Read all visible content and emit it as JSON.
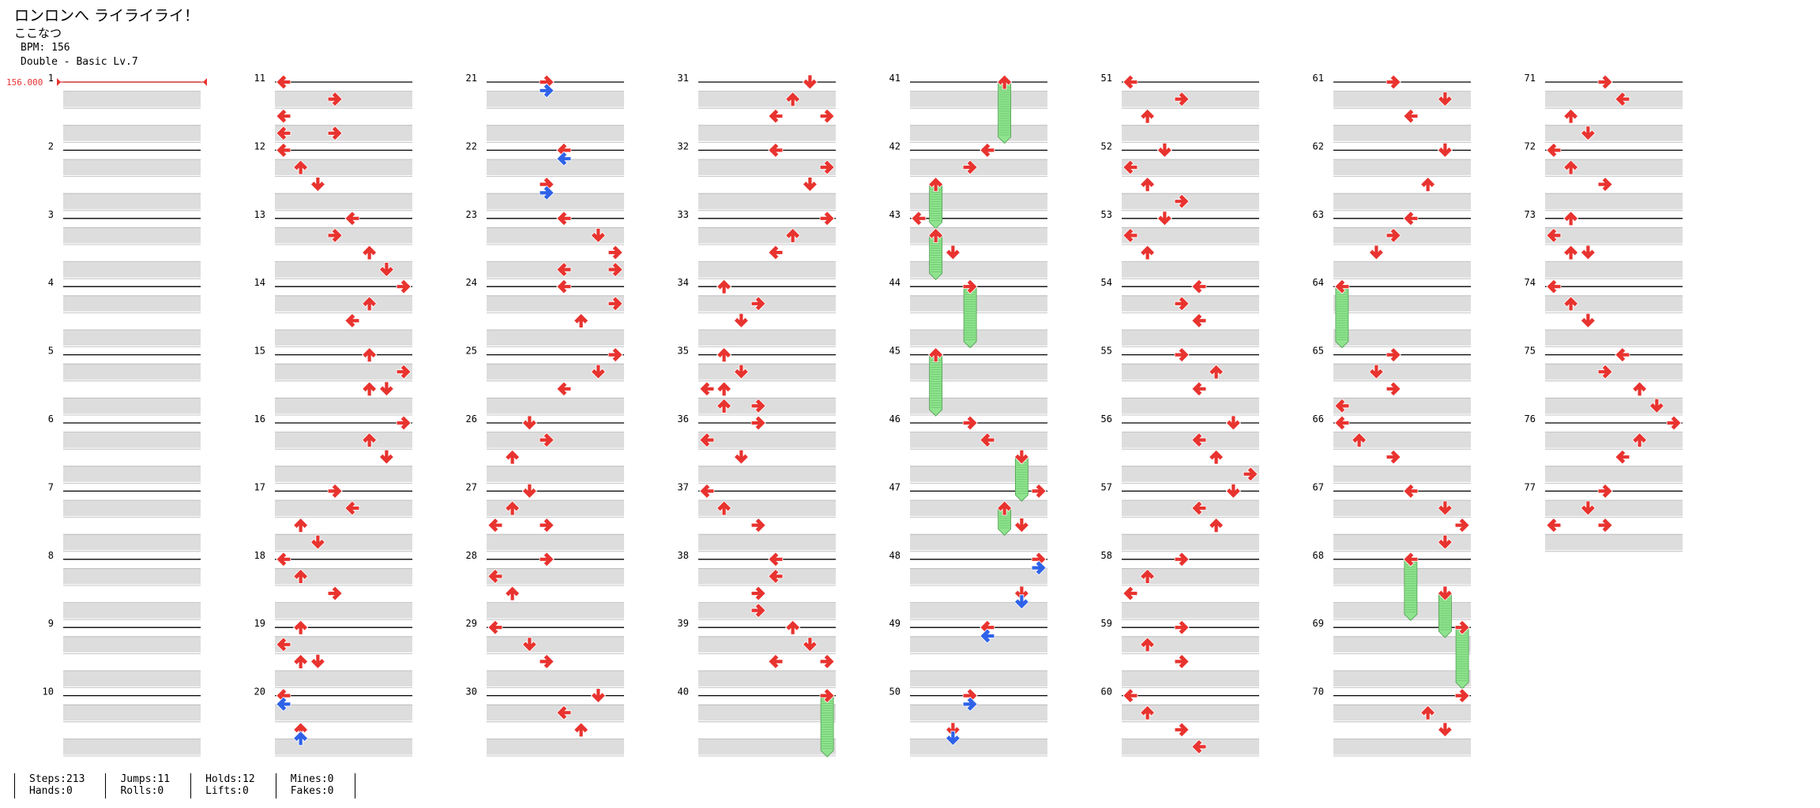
{
  "song": {
    "title": "ロンロンへ ライライライ！",
    "artist": "ここなつ"
  },
  "bpm_line": "BPM: 156",
  "chart_line": "Double - Basic Lv.7",
  "bpm_marker": "156.000",
  "stats": {
    "steps": "Steps:213",
    "jumps": "Jumps:11",
    "holds": "Holds:12",
    "mines": "Mines:0",
    "hands": "Hands:0",
    "rolls": "Rolls:0",
    "lifts": "Lifts:0",
    "fakes": "Fakes:0"
  },
  "colors": {
    "arrow": "#e8332f",
    "arrow_alt": "#2f62e8",
    "hold": "#8fe38f",
    "stripe": "#dddddd",
    "bpm": "#e8332f"
  },
  "chart_data": {
    "type": "stepchart",
    "mode": "Double",
    "lanes": [
      "P1-Left",
      "P1-Down",
      "P1-Up",
      "P1-Right",
      "P2-Left",
      "P2-Down",
      "P2-Up",
      "P2-Right"
    ],
    "measure_count": 77,
    "measure_numbers": [
      1,
      2,
      3,
      4,
      5,
      6,
      7,
      8,
      9,
      10,
      11,
      12,
      13,
      14,
      15,
      16,
      17,
      18,
      19,
      20,
      21,
      22,
      23,
      24,
      25,
      26,
      27,
      28,
      29,
      30,
      31,
      32,
      33,
      34,
      35,
      36,
      37,
      38,
      39,
      40,
      41,
      42,
      43,
      44,
      45,
      46,
      47,
      48,
      49,
      50,
      51,
      52,
      53,
      54,
      55,
      56,
      57,
      58,
      59,
      60,
      61,
      62,
      63,
      64,
      65,
      66,
      67,
      68,
      69,
      70,
      71,
      72,
      73,
      74,
      75,
      76,
      77
    ],
    "notes": [
      {
        "m": 11,
        "b": 0,
        "l": 0,
        "c": "r"
      },
      {
        "m": 11,
        "b": 1,
        "l": 3,
        "c": "r"
      },
      {
        "m": 11,
        "b": 2,
        "l": 0,
        "c": "r"
      },
      {
        "m": 11,
        "b": 3,
        "l": 3,
        "c": "r"
      },
      {
        "m": 11,
        "b": 3,
        "l": 0,
        "c": "r"
      },
      {
        "m": 12,
        "b": 0,
        "l": 0,
        "c": "r"
      },
      {
        "m": 12,
        "b": 1,
        "l": 1,
        "c": "r"
      },
      {
        "m": 12,
        "b": 2,
        "l": 2,
        "c": "r"
      },
      {
        "m": 13,
        "b": 0,
        "l": 4,
        "c": "r"
      },
      {
        "m": 13,
        "b": 1,
        "l": 3,
        "c": "r"
      },
      {
        "m": 13,
        "b": 2,
        "l": 5,
        "c": "r"
      },
      {
        "m": 13,
        "b": 3,
        "l": 6,
        "c": "r"
      },
      {
        "m": 14,
        "b": 0,
        "l": 7,
        "c": "r"
      },
      {
        "m": 14,
        "b": 1,
        "l": 5,
        "c": "r"
      },
      {
        "m": 14,
        "b": 2,
        "l": 4,
        "c": "r"
      },
      {
        "m": 15,
        "b": 0,
        "l": 5,
        "c": "r"
      },
      {
        "m": 15,
        "b": 1,
        "l": 7,
        "c": "r"
      },
      {
        "m": 15,
        "b": 2,
        "l": 5,
        "c": "r"
      },
      {
        "m": 15,
        "b": 2,
        "l": 6,
        "c": "r"
      },
      {
        "m": 16,
        "b": 0,
        "l": 7,
        "c": "r"
      },
      {
        "m": 16,
        "b": 1,
        "l": 5,
        "c": "r"
      },
      {
        "m": 16,
        "b": 2,
        "l": 6,
        "c": "r"
      },
      {
        "m": 17,
        "b": 0,
        "l": 3,
        "c": "r"
      },
      {
        "m": 17,
        "b": 1,
        "l": 4,
        "c": "r"
      },
      {
        "m": 17,
        "b": 2,
        "l": 1,
        "c": "r"
      },
      {
        "m": 17,
        "b": 3,
        "l": 2,
        "c": "r"
      },
      {
        "m": 18,
        "b": 0,
        "l": 0,
        "c": "r"
      },
      {
        "m": 18,
        "b": 1,
        "l": 1,
        "c": "r"
      },
      {
        "m": 18,
        "b": 2,
        "l": 3,
        "c": "r"
      },
      {
        "m": 19,
        "b": 0,
        "l": 1,
        "c": "r"
      },
      {
        "m": 19,
        "b": 1,
        "l": 0,
        "c": "r"
      },
      {
        "m": 19,
        "b": 2,
        "l": 1,
        "c": "r"
      },
      {
        "m": 19,
        "b": 2,
        "l": 2,
        "c": "r"
      },
      {
        "m": 20,
        "b": 0,
        "l": 0,
        "c": "r"
      },
      {
        "m": 20,
        "b": 0.5,
        "l": 0,
        "c": "b"
      },
      {
        "m": 20,
        "b": 2,
        "l": 1,
        "c": "r"
      },
      {
        "m": 20,
        "b": 2.5,
        "l": 1,
        "c": "b"
      },
      {
        "m": 21,
        "b": 0,
        "l": 3,
        "c": "r"
      },
      {
        "m": 21,
        "b": 0.5,
        "l": 3,
        "c": "b"
      },
      {
        "m": 22,
        "b": 0,
        "l": 4,
        "c": "r"
      },
      {
        "m": 22,
        "b": 0.5,
        "l": 4,
        "c": "b"
      },
      {
        "m": 22,
        "b": 2,
        "l": 3,
        "c": "r"
      },
      {
        "m": 22,
        "b": 2.5,
        "l": 3,
        "c": "b"
      },
      {
        "m": 23,
        "b": 0,
        "l": 4,
        "c": "r"
      },
      {
        "m": 23,
        "b": 1,
        "l": 6,
        "c": "r"
      },
      {
        "m": 23,
        "b": 2,
        "l": 7,
        "c": "r"
      },
      {
        "m": 23,
        "b": 3,
        "l": 4,
        "c": "r"
      },
      {
        "m": 23,
        "b": 3,
        "l": 7,
        "c": "r"
      },
      {
        "m": 24,
        "b": 0,
        "l": 4,
        "c": "r"
      },
      {
        "m": 24,
        "b": 1,
        "l": 7,
        "c": "r"
      },
      {
        "m": 24,
        "b": 2,
        "l": 5,
        "c": "r"
      },
      {
        "m": 25,
        "b": 0,
        "l": 7,
        "c": "r"
      },
      {
        "m": 25,
        "b": 1,
        "l": 6,
        "c": "r"
      },
      {
        "m": 25,
        "b": 2,
        "l": 4,
        "c": "r"
      },
      {
        "m": 26,
        "b": 0,
        "l": 2,
        "c": "r"
      },
      {
        "m": 26,
        "b": 1,
        "l": 3,
        "c": "r"
      },
      {
        "m": 26,
        "b": 2,
        "l": 1,
        "c": "r"
      },
      {
        "m": 27,
        "b": 0,
        "l": 2,
        "c": "r"
      },
      {
        "m": 27,
        "b": 1,
        "l": 1,
        "c": "r"
      },
      {
        "m": 27,
        "b": 2,
        "l": 0,
        "c": "r"
      },
      {
        "m": 27,
        "b": 2,
        "l": 3,
        "c": "r"
      },
      {
        "m": 28,
        "b": 0,
        "l": 3,
        "c": "r"
      },
      {
        "m": 28,
        "b": 1,
        "l": 0,
        "c": "r"
      },
      {
        "m": 28,
        "b": 2,
        "l": 1,
        "c": "r"
      },
      {
        "m": 29,
        "b": 0,
        "l": 0,
        "c": "r"
      },
      {
        "m": 29,
        "b": 1,
        "l": 2,
        "c": "r"
      },
      {
        "m": 29,
        "b": 2,
        "l": 3,
        "c": "r"
      },
      {
        "m": 30,
        "b": 0,
        "l": 6,
        "c": "r"
      },
      {
        "m": 30,
        "b": 1,
        "l": 4,
        "c": "r"
      },
      {
        "m": 30,
        "b": 2,
        "l": 5,
        "c": "r"
      },
      {
        "m": 31,
        "b": 0,
        "l": 6,
        "c": "r"
      },
      {
        "m": 31,
        "b": 1,
        "l": 5,
        "c": "r"
      },
      {
        "m": 31,
        "b": 2,
        "l": 4,
        "c": "r"
      },
      {
        "m": 31,
        "b": 2,
        "l": 7,
        "c": "r"
      },
      {
        "m": 32,
        "b": 0,
        "l": 4,
        "c": "r"
      },
      {
        "m": 32,
        "b": 1,
        "l": 7,
        "c": "r"
      },
      {
        "m": 32,
        "b": 2,
        "l": 6,
        "c": "r"
      },
      {
        "m": 33,
        "b": 0,
        "l": 7,
        "c": "r"
      },
      {
        "m": 33,
        "b": 1,
        "l": 5,
        "c": "r"
      },
      {
        "m": 33,
        "b": 2,
        "l": 4,
        "c": "r"
      },
      {
        "m": 34,
        "b": 0,
        "l": 1,
        "c": "r"
      },
      {
        "m": 34,
        "b": 1,
        "l": 3,
        "c": "r"
      },
      {
        "m": 34,
        "b": 2,
        "l": 2,
        "c": "r"
      },
      {
        "m": 35,
        "b": 0,
        "l": 1,
        "c": "r"
      },
      {
        "m": 35,
        "b": 1,
        "l": 2,
        "c": "r"
      },
      {
        "m": 35,
        "b": 2,
        "l": 0,
        "c": "r"
      },
      {
        "m": 35,
        "b": 2,
        "l": 1,
        "c": "r"
      },
      {
        "m": 35,
        "b": 3,
        "l": 1,
        "c": "r"
      },
      {
        "m": 35,
        "b": 3,
        "l": 3,
        "c": "r"
      },
      {
        "m": 36,
        "b": 0,
        "l": 3,
        "c": "r"
      },
      {
        "m": 36,
        "b": 1,
        "l": 0,
        "c": "r"
      },
      {
        "m": 36,
        "b": 2,
        "l": 2,
        "c": "r"
      },
      {
        "m": 37,
        "b": 0,
        "l": 0,
        "c": "r"
      },
      {
        "m": 37,
        "b": 1,
        "l": 1,
        "c": "r"
      },
      {
        "m": 37,
        "b": 2,
        "l": 3,
        "c": "r"
      },
      {
        "m": 38,
        "b": 0,
        "l": 4,
        "c": "r"
      },
      {
        "m": 38,
        "b": 1,
        "l": 4,
        "c": "r"
      },
      {
        "m": 38,
        "b": 2,
        "l": 3,
        "c": "r"
      },
      {
        "m": 38,
        "b": 3,
        "l": 3,
        "c": "r"
      },
      {
        "m": 39,
        "b": 0,
        "l": 5,
        "c": "r"
      },
      {
        "m": 39,
        "b": 1,
        "l": 6,
        "c": "r"
      },
      {
        "m": 39,
        "b": 2,
        "l": 4,
        "c": "r"
      },
      {
        "m": 39,
        "b": 2,
        "l": 7,
        "c": "r"
      },
      {
        "m": 40,
        "b": 0,
        "l": 7,
        "c": "r",
        "hold": 3.5
      },
      {
        "m": 41,
        "b": 0,
        "l": 5,
        "c": "r",
        "hold": 3.5
      },
      {
        "m": 42,
        "b": 0,
        "l": 4,
        "c": "r"
      },
      {
        "m": 42,
        "b": 1,
        "l": 3,
        "c": "r"
      },
      {
        "m": 42,
        "b": 2,
        "l": 1,
        "c": "r",
        "hold": 2.5
      },
      {
        "m": 43,
        "b": 0,
        "l": 0,
        "c": "r"
      },
      {
        "m": 43,
        "b": 1,
        "l": 1,
        "c": "r",
        "hold": 2.5
      },
      {
        "m": 43,
        "b": 2,
        "l": 2,
        "c": "r"
      },
      {
        "m": 44,
        "b": 0,
        "l": 3,
        "c": "r",
        "hold": 3.5
      },
      {
        "m": 45,
        "b": 0,
        "l": 1,
        "c": "r",
        "hold": 3.5
      },
      {
        "m": 46,
        "b": 0,
        "l": 3,
        "c": "r"
      },
      {
        "m": 46,
        "b": 1,
        "l": 4,
        "c": "r"
      },
      {
        "m": 46,
        "b": 2,
        "l": 6,
        "c": "r",
        "hold": 2.5
      },
      {
        "m": 47,
        "b": 0,
        "l": 7,
        "c": "r"
      },
      {
        "m": 47,
        "b": 1,
        "l": 5,
        "c": "r",
        "hold": 1.5
      },
      {
        "m": 47,
        "b": 2,
        "l": 6,
        "c": "r"
      },
      {
        "m": 48,
        "b": 0,
        "l": 7,
        "c": "r"
      },
      {
        "m": 48,
        "b": 0.5,
        "l": 7,
        "c": "b"
      },
      {
        "m": 48,
        "b": 2,
        "l": 6,
        "c": "r"
      },
      {
        "m": 48,
        "b": 2.5,
        "l": 6,
        "c": "b"
      },
      {
        "m": 49,
        "b": 0,
        "l": 4,
        "c": "r"
      },
      {
        "m": 49,
        "b": 0.5,
        "l": 4,
        "c": "b"
      },
      {
        "m": 50,
        "b": 0,
        "l": 3,
        "c": "r"
      },
      {
        "m": 50,
        "b": 0.5,
        "l": 3,
        "c": "b"
      },
      {
        "m": 50,
        "b": 2,
        "l": 2,
        "c": "r"
      },
      {
        "m": 50,
        "b": 2.5,
        "l": 2,
        "c": "b"
      },
      {
        "m": 51,
        "b": 0,
        "l": 0,
        "c": "r"
      },
      {
        "m": 51,
        "b": 1,
        "l": 3,
        "c": "r"
      },
      {
        "m": 51,
        "b": 2,
        "l": 1,
        "c": "r"
      },
      {
        "m": 52,
        "b": 0,
        "l": 2,
        "c": "r"
      },
      {
        "m": 52,
        "b": 1,
        "l": 0,
        "c": "r"
      },
      {
        "m": 52,
        "b": 2,
        "l": 1,
        "c": "r"
      },
      {
        "m": 52,
        "b": 3,
        "l": 3,
        "c": "r"
      },
      {
        "m": 53,
        "b": 0,
        "l": 2,
        "c": "r"
      },
      {
        "m": 53,
        "b": 1,
        "l": 0,
        "c": "r"
      },
      {
        "m": 53,
        "b": 2,
        "l": 1,
        "c": "r"
      },
      {
        "m": 54,
        "b": 0,
        "l": 4,
        "c": "r"
      },
      {
        "m": 54,
        "b": 1,
        "l": 3,
        "c": "r"
      },
      {
        "m": 54,
        "b": 2,
        "l": 4,
        "c": "r"
      },
      {
        "m": 55,
        "b": 0,
        "l": 3,
        "c": "r"
      },
      {
        "m": 55,
        "b": 1,
        "l": 5,
        "c": "r"
      },
      {
        "m": 55,
        "b": 2,
        "l": 4,
        "c": "r"
      },
      {
        "m": 56,
        "b": 0,
        "l": 6,
        "c": "r"
      },
      {
        "m": 56,
        "b": 1,
        "l": 4,
        "c": "r"
      },
      {
        "m": 56,
        "b": 2,
        "l": 5,
        "c": "r"
      },
      {
        "m": 56,
        "b": 3,
        "l": 7,
        "c": "r"
      },
      {
        "m": 57,
        "b": 0,
        "l": 6,
        "c": "r"
      },
      {
        "m": 57,
        "b": 1,
        "l": 4,
        "c": "r"
      },
      {
        "m": 57,
        "b": 2,
        "l": 5,
        "c": "r"
      },
      {
        "m": 58,
        "b": 0,
        "l": 3,
        "c": "r"
      },
      {
        "m": 58,
        "b": 1,
        "l": 1,
        "c": "r"
      },
      {
        "m": 58,
        "b": 2,
        "l": 0,
        "c": "r"
      },
      {
        "m": 59,
        "b": 0,
        "l": 3,
        "c": "r"
      },
      {
        "m": 59,
        "b": 1,
        "l": 1,
        "c": "r"
      },
      {
        "m": 59,
        "b": 2,
        "l": 3,
        "c": "r"
      },
      {
        "m": 60,
        "b": 0,
        "l": 0,
        "c": "r"
      },
      {
        "m": 60,
        "b": 1,
        "l": 1,
        "c": "r"
      },
      {
        "m": 60,
        "b": 2,
        "l": 3,
        "c": "r"
      },
      {
        "m": 60,
        "b": 3,
        "l": 4,
        "c": "r"
      },
      {
        "m": 61,
        "b": 0,
        "l": 3,
        "c": "r"
      },
      {
        "m": 61,
        "b": 1,
        "l": 6,
        "c": "r"
      },
      {
        "m": 61,
        "b": 2,
        "l": 4,
        "c": "r"
      },
      {
        "m": 62,
        "b": 0,
        "l": 6,
        "c": "r"
      },
      {
        "m": 62,
        "b": 2,
        "l": 5,
        "c": "r"
      },
      {
        "m": 63,
        "b": 0,
        "l": 4,
        "c": "r"
      },
      {
        "m": 63,
        "b": 1,
        "l": 3,
        "c": "r"
      },
      {
        "m": 63,
        "b": 2,
        "l": 2,
        "c": "r"
      },
      {
        "m": 64,
        "b": 0,
        "l": 0,
        "c": "r",
        "hold": 3.5
      },
      {
        "m": 65,
        "b": 0,
        "l": 3,
        "c": "r"
      },
      {
        "m": 65,
        "b": 1,
        "l": 2,
        "c": "r"
      },
      {
        "m": 65,
        "b": 2,
        "l": 3,
        "c": "r"
      },
      {
        "m": 65,
        "b": 3,
        "l": 0,
        "c": "r"
      },
      {
        "m": 66,
        "b": 0,
        "l": 0,
        "c": "r"
      },
      {
        "m": 66,
        "b": 1,
        "l": 1,
        "c": "r"
      },
      {
        "m": 66,
        "b": 2,
        "l": 3,
        "c": "r"
      },
      {
        "m": 67,
        "b": 0,
        "l": 4,
        "c": "r"
      },
      {
        "m": 67,
        "b": 1,
        "l": 6,
        "c": "r"
      },
      {
        "m": 67,
        "b": 2,
        "l": 7,
        "c": "r"
      },
      {
        "m": 67,
        "b": 3,
        "l": 6,
        "c": "r"
      },
      {
        "m": 68,
        "b": 0,
        "l": 4,
        "c": "r",
        "hold": 3.5
      },
      {
        "m": 68,
        "b": 2,
        "l": 6,
        "c": "r",
        "hold": 2.5
      },
      {
        "m": 69,
        "b": 0,
        "l": 7,
        "c": "r",
        "hold": 3.5
      },
      {
        "m": 70,
        "b": 0,
        "l": 7,
        "c": "r"
      },
      {
        "m": 70,
        "b": 1,
        "l": 5,
        "c": "r"
      },
      {
        "m": 70,
        "b": 2,
        "l": 6,
        "c": "r"
      },
      {
        "m": 71,
        "b": 0,
        "l": 3,
        "c": "r"
      },
      {
        "m": 71,
        "b": 1,
        "l": 4,
        "c": "r"
      },
      {
        "m": 71,
        "b": 2,
        "l": 1,
        "c": "r"
      },
      {
        "m": 71,
        "b": 3,
        "l": 2,
        "c": "r"
      },
      {
        "m": 72,
        "b": 0,
        "l": 0,
        "c": "r"
      },
      {
        "m": 72,
        "b": 1,
        "l": 1,
        "c": "r"
      },
      {
        "m": 72,
        "b": 2,
        "l": 3,
        "c": "r"
      },
      {
        "m": 73,
        "b": 0,
        "l": 1,
        "c": "r"
      },
      {
        "m": 73,
        "b": 1,
        "l": 0,
        "c": "r"
      },
      {
        "m": 73,
        "b": 2,
        "l": 1,
        "c": "r"
      },
      {
        "m": 73,
        "b": 2,
        "l": 2,
        "c": "r"
      },
      {
        "m": 74,
        "b": 0,
        "l": 0,
        "c": "r"
      },
      {
        "m": 74,
        "b": 1,
        "l": 1,
        "c": "r"
      },
      {
        "m": 74,
        "b": 2,
        "l": 2,
        "c": "r"
      },
      {
        "m": 75,
        "b": 0,
        "l": 4,
        "c": "r"
      },
      {
        "m": 75,
        "b": 1,
        "l": 3,
        "c": "r"
      },
      {
        "m": 75,
        "b": 2,
        "l": 5,
        "c": "r"
      },
      {
        "m": 75,
        "b": 3,
        "l": 6,
        "c": "r"
      },
      {
        "m": 76,
        "b": 0,
        "l": 7,
        "c": "r"
      },
      {
        "m": 76,
        "b": 1,
        "l": 5,
        "c": "r"
      },
      {
        "m": 76,
        "b": 2,
        "l": 4,
        "c": "r"
      },
      {
        "m": 77,
        "b": 0,
        "l": 3,
        "c": "r"
      },
      {
        "m": 77,
        "b": 1,
        "l": 2,
        "c": "r"
      },
      {
        "m": 77,
        "b": 2,
        "l": 0,
        "c": "r"
      },
      {
        "m": 77,
        "b": 2,
        "l": 3,
        "c": "r"
      }
    ]
  }
}
